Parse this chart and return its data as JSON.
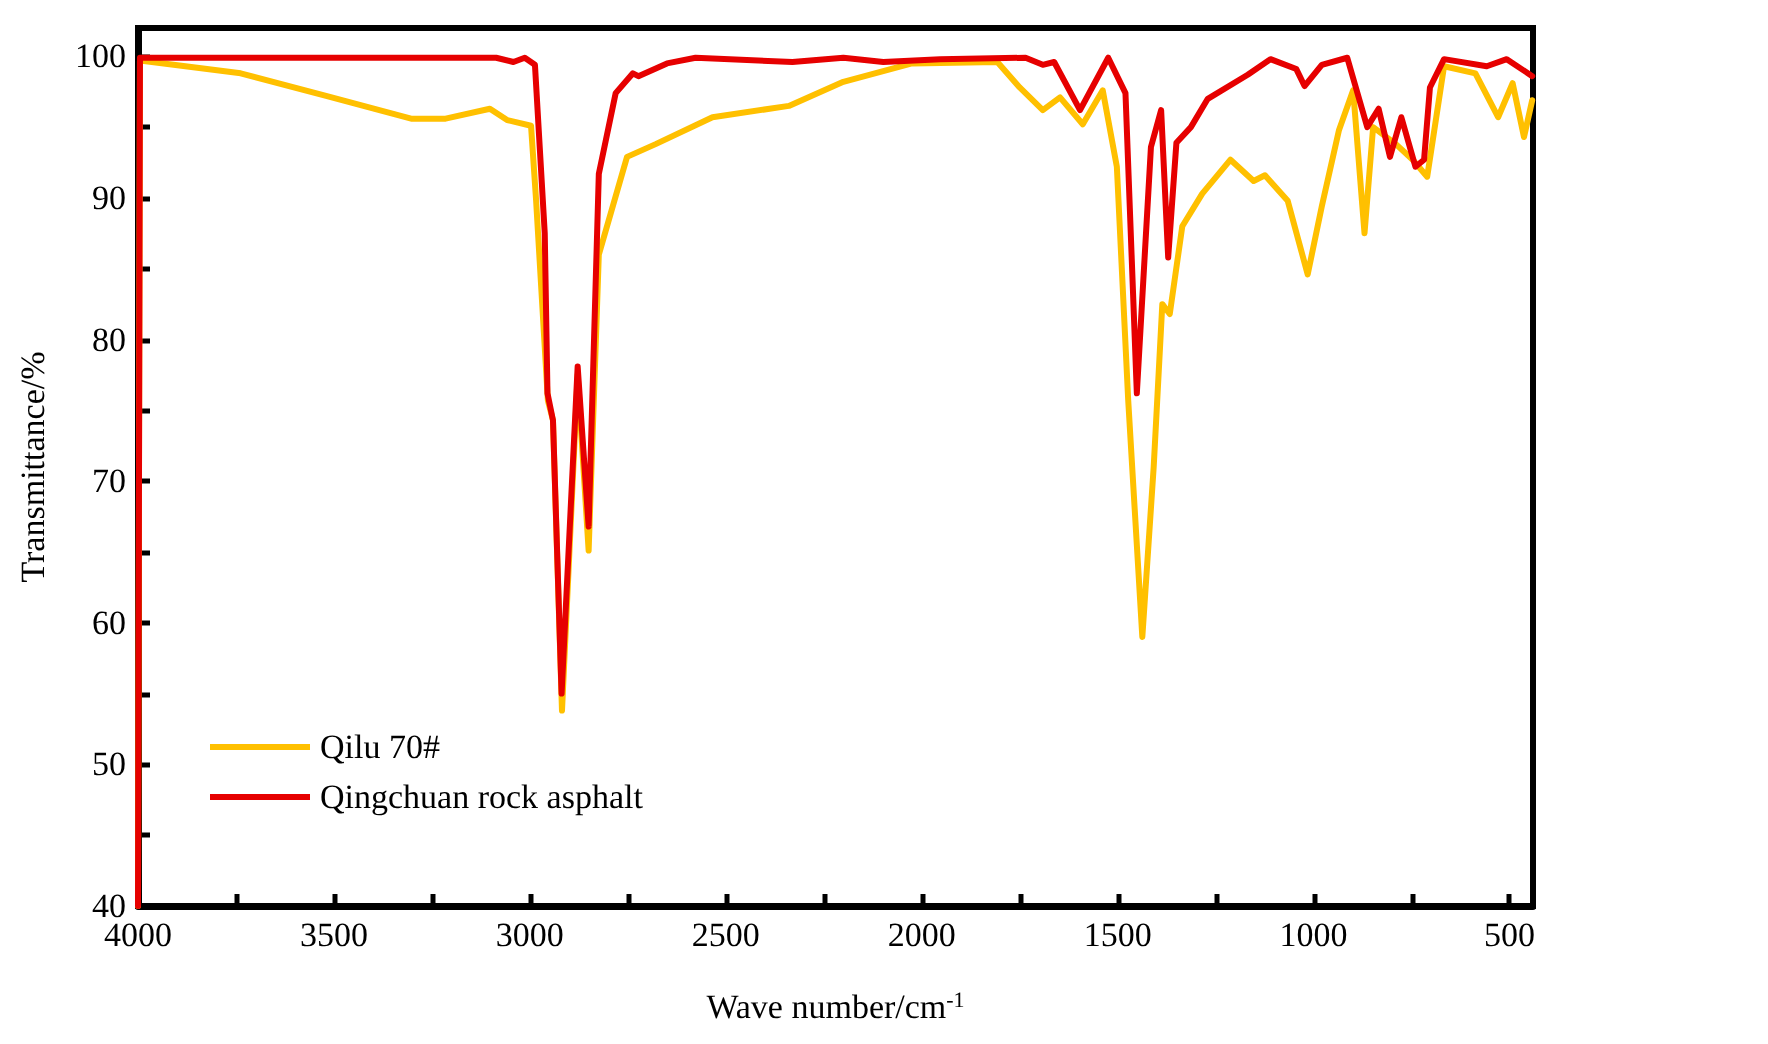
{
  "chart_data": {
    "type": "line",
    "xlabel": "Wave number/cm$^{-1}$",
    "ylabel": "Transmittance/%",
    "xlim": [
      4000,
      440
    ],
    "ylim": [
      40,
      102
    ],
    "xticks": [
      4000,
      {
        "value": 3750,
        "label": null
      },
      3500,
      {
        "value": 3250,
        "label": null
      },
      3000,
      {
        "value": 2750,
        "label": null
      },
      2500,
      {
        "value": 2250,
        "label": null
      },
      2000,
      {
        "value": 1750,
        "label": null
      },
      1500,
      {
        "value": 1250,
        "label": null
      },
      1000,
      {
        "value": 750,
        "label": null
      },
      500
    ],
    "yticks": [
      40,
      {
        "value": 45,
        "label": null
      },
      50,
      {
        "value": 55,
        "label": null
      },
      60,
      {
        "value": 65,
        "label": null
      },
      70,
      {
        "value": 75,
        "label": null
      },
      80,
      {
        "value": 85,
        "label": null
      },
      90,
      {
        "value": 95,
        "label": null
      },
      100
    ],
    "grid": false,
    "legend": "bottom left",
    "marker": "none",
    "line_style": "solid",
    "series": [
      {
        "name": "Qilu 70#",
        "color": "#ffc000",
        "x": [
          4000,
          3995,
          3738,
          3520,
          3303,
          3215,
          3102,
          3058,
          2997,
          2984,
          2954,
          2941,
          2918,
          2878,
          2850,
          2824,
          2752,
          2679,
          2534,
          2339,
          2200,
          2025,
          1807,
          1750,
          1691,
          1647,
          1589,
          1538,
          1502,
          1473,
          1437,
          1408,
          1386,
          1367,
          1335,
          1284,
          1212,
          1153,
          1124,
          1066,
          1015,
          979,
          935,
          899,
          870,
          848,
          790,
          747,
          710,
          667,
          587,
          529,
          492,
          463,
          442
        ],
        "values": [
          40,
          99.7,
          98.8,
          97.2,
          95.6,
          95.6,
          96.3,
          95.5,
          95.1,
          89.8,
          75.7,
          74.3,
          53.8,
          77.5,
          65.1,
          86.0,
          92.9,
          93.8,
          95.7,
          96.5,
          98.2,
          99.5,
          99.6,
          97.8,
          96.2,
          97.1,
          95.2,
          97.6,
          92.2,
          75.7,
          59.0,
          71.0,
          82.5,
          81.8,
          88.0,
          90.3,
          92.7,
          91.2,
          91.6,
          89.8,
          84.6,
          89.4,
          94.8,
          97.6,
          87.5,
          95.0,
          93.8,
          92.7,
          91.5,
          99.3,
          98.8,
          95.7,
          98.1,
          94.3,
          96.9
        ]
      },
      {
        "name": "Qingchuan rock asphalt",
        "color": "#e60000",
        "x": [
          4000,
          3995,
          3086,
          3042,
          3013,
          2987,
          2962,
          2955,
          2941,
          2919,
          2878,
          2850,
          2824,
          2781,
          2737,
          2723,
          2650,
          2577,
          2330,
          2200,
          2098,
          1953,
          1735,
          1691,
          1662,
          1596,
          1524,
          1480,
          1451,
          1415,
          1389,
          1371,
          1350,
          1313,
          1270,
          1168,
          1110,
          1044,
          1023,
          979,
          914,
          863,
          834,
          805,
          776,
          740,
          718,
          703,
          667,
          558,
          507,
          442
        ],
        "values": [
          40,
          99.9,
          99.9,
          99.6,
          99.9,
          99.4,
          87.5,
          76.2,
          74.3,
          55.0,
          78.1,
          66.8,
          91.7,
          97.4,
          98.8,
          98.6,
          99.5,
          99.9,
          99.6,
          99.9,
          99.6,
          99.8,
          99.9,
          99.4,
          99.6,
          96.2,
          99.9,
          97.4,
          76.2,
          93.6,
          96.2,
          85.8,
          93.9,
          95.0,
          97.0,
          98.7,
          99.8,
          99.1,
          97.9,
          99.4,
          99.9,
          95.0,
          96.3,
          92.9,
          95.7,
          92.2,
          92.7,
          97.8,
          99.8,
          99.3,
          99.8,
          98.6
        ]
      }
    ]
  }
}
